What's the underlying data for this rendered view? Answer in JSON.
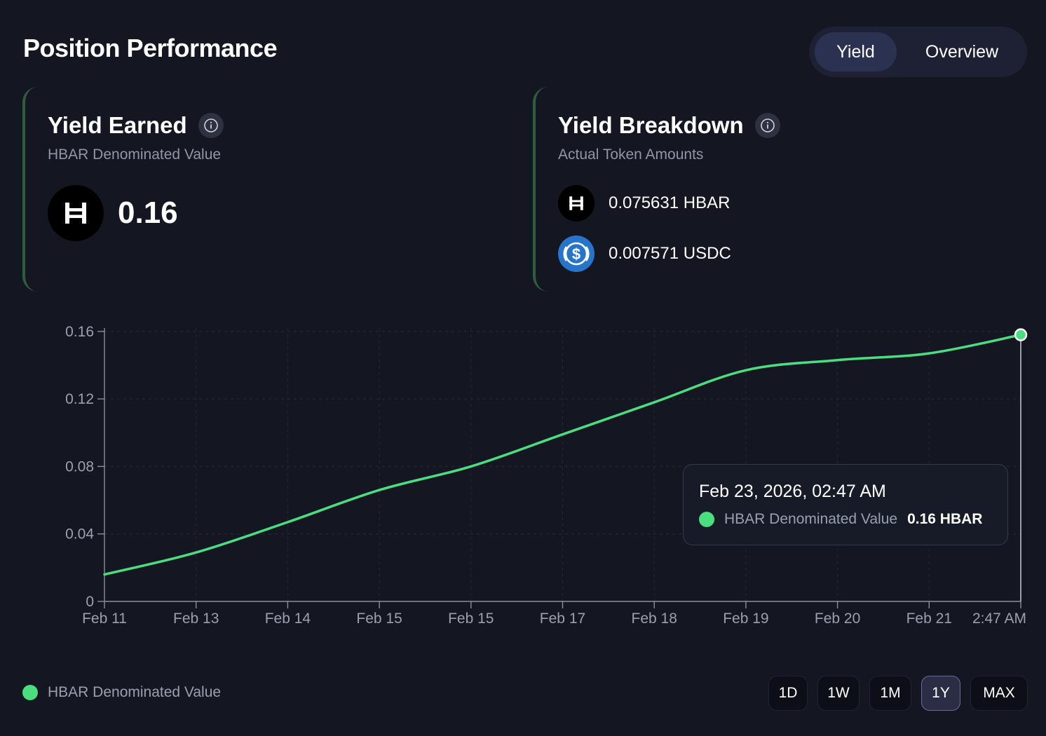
{
  "header": {
    "title": "Position Performance"
  },
  "view_toggle": {
    "items": [
      "Yield",
      "Overview"
    ],
    "active": "Yield"
  },
  "yield_earned": {
    "title": "Yield Earned",
    "subtitle": "HBAR Denominated Value",
    "value": "0.16"
  },
  "yield_breakdown": {
    "title": "Yield Breakdown",
    "subtitle": "Actual Token Amounts",
    "tokens": [
      {
        "icon": "hbar-icon",
        "amount": "0.075631 HBAR"
      },
      {
        "icon": "usdc-icon",
        "amount": "0.007571 USDC"
      }
    ]
  },
  "tooltip": {
    "date": "Feb 23, 2026, 02:47 AM",
    "series": "HBAR Denominated Value",
    "value": "0.16 HBAR"
  },
  "legend": {
    "label": "HBAR Denominated Value"
  },
  "ranges": {
    "items": [
      "1D",
      "1W",
      "1M",
      "1Y",
      "MAX"
    ],
    "active": "1Y"
  },
  "colors": {
    "line": "#4ade80",
    "background": "#141722",
    "card_accent": "#2f5e3b"
  },
  "chart_data": {
    "type": "line",
    "categories": [
      "Feb 11",
      "Feb 13",
      "Feb 14",
      "Feb 15",
      "Feb 15",
      "Feb 17",
      "Feb 18",
      "Feb 19",
      "Feb 20",
      "Feb 21",
      "2:47 AM"
    ],
    "series": [
      {
        "name": "HBAR Denominated Value",
        "values": [
          0.016,
          0.029,
          0.047,
          0.066,
          0.08,
          0.099,
          0.118,
          0.137,
          0.143,
          0.147,
          0.158
        ]
      }
    ],
    "yticks": [
      0,
      0.04,
      0.08,
      0.12,
      0.16
    ],
    "ytick_labels": [
      "0",
      "0.04",
      "0.08",
      "0.12",
      "0.16"
    ],
    "ylim": [
      0,
      0.162
    ],
    "grid": true,
    "highlighted_point": 10,
    "legend_position": "bottom-left"
  }
}
